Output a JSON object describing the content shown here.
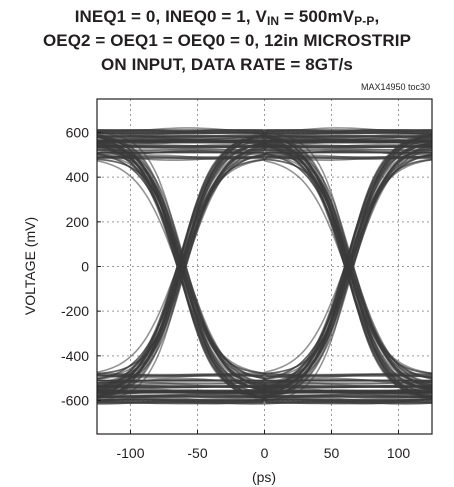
{
  "title": {
    "line1_prefix": "INEQ1 = 0, INEQ0 = 1, V",
    "line1_sub": "IN",
    "line1_mid": " = 500mV",
    "line1_sub2": "P-P",
    "line1_suffix": ",",
    "line2": "OEQ2 = OEQ1 = OEQ0 = 0, 12in MICROSTRIP",
    "line3": "ON INPUT, DATA RATE = 8GT/s"
  },
  "figure_ref": "MAX14950 toc30",
  "chart_data": {
    "type": "line",
    "title": "INEQ1 = 0, INEQ0 = 1, VIN = 500mVP-P, OEQ2 = OEQ1 = OEQ0 = 0, 12in MICROSTRIP ON INPUT, DATA RATE = 8GT/s",
    "xlabel": "(ps)",
    "ylabel": "VOLTAGE (mV)",
    "xlim": [
      -125,
      125
    ],
    "ylim": [
      -750,
      750
    ],
    "x_ticks": [
      -100,
      -50,
      0,
      50,
      100
    ],
    "y_ticks": [
      600,
      400,
      200,
      0,
      -200,
      -400,
      -600
    ],
    "grid": true,
    "description_type": "eye diagram",
    "unit_interval_ps": 125,
    "crossings_ps": [
      -62.5,
      62.5
    ],
    "high_level_mv": [
      480,
      620
    ],
    "low_level_mv": [
      -480,
      -620
    ],
    "trace_color": "#3a3a3a"
  }
}
